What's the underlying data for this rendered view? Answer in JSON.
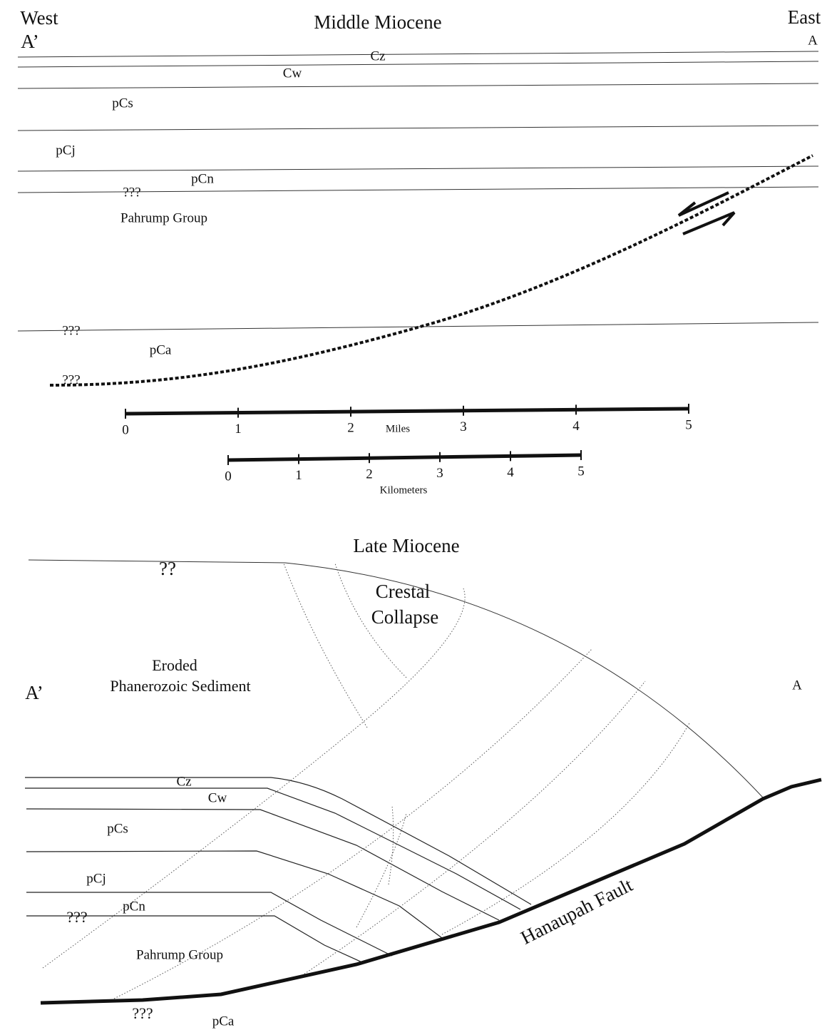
{
  "middle_miocene": {
    "title": "Middle Miocene",
    "west": "West",
    "east": "East",
    "a_prime": "A’",
    "a": "A",
    "units": {
      "cz": "Cz",
      "cw": "Cw",
      "pcs": "pCs",
      "pcj": "pCj",
      "pcn": "pCn",
      "pahrump": "Pahrump Group",
      "pca": "pCa"
    },
    "uncertain": [
      "???",
      "???",
      "???"
    ]
  },
  "scale_miles": {
    "label": "Miles",
    "ticks": [
      0,
      1,
      2,
      3,
      4,
      5
    ]
  },
  "scale_km": {
    "label": "Kilometers",
    "ticks": [
      0,
      1,
      2,
      3,
      4,
      5
    ]
  },
  "late_miocene": {
    "title": "Late Miocene",
    "top_uncertain": "??",
    "crestal": [
      "Crestal",
      "Collapse"
    ],
    "eroded": [
      "Eroded",
      "Phanerozoic Sediment"
    ],
    "a_prime": "A’",
    "a": "A",
    "units": {
      "cz": "Cz",
      "cw": "Cw",
      "pcs": "pCs",
      "pcj": "pCj",
      "pcn": "pCn",
      "pahrump": "Pahrump Group",
      "pca": "pCa"
    },
    "uncertain": [
      "???",
      "???"
    ],
    "fault": "Hanaupah Fault"
  }
}
